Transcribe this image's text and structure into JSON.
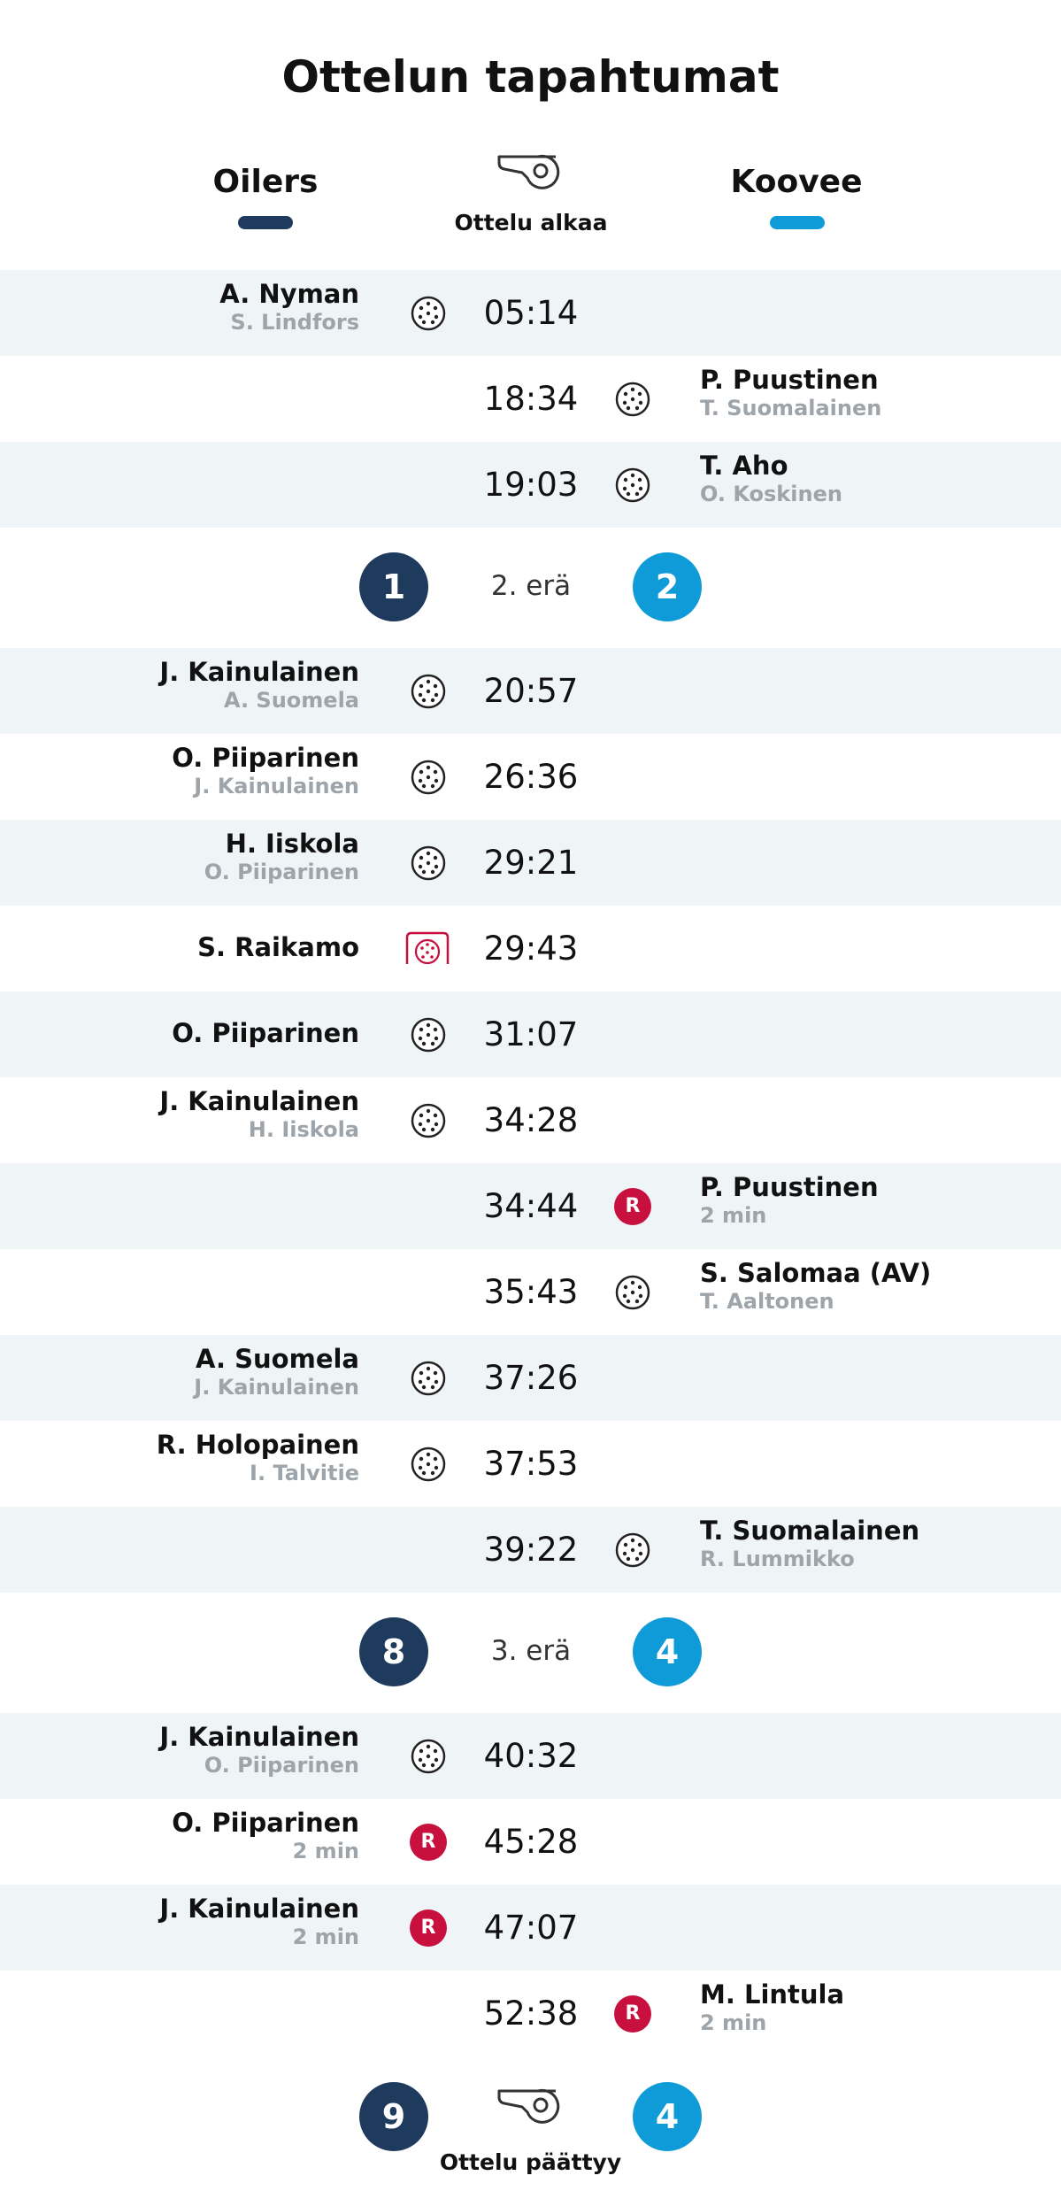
{
  "title": "Ottelun tapahtumat",
  "teams": {
    "home": {
      "name": "Oilers",
      "color": "#1e3a5c"
    },
    "away": {
      "name": "Koovee",
      "color": "#0f9bd7"
    }
  },
  "start_label": "Ottelu alkaa",
  "end_label": "Ottelu päättyy",
  "final_score": {
    "home": "9",
    "away": "4"
  },
  "periods": [
    {
      "label": "2. erä",
      "home_score": "1",
      "away_score": "2"
    },
    {
      "label": "3. erä",
      "home_score": "8",
      "away_score": "4"
    }
  ],
  "events": [
    {
      "time": "05:14",
      "side": "home",
      "type": "goal",
      "player": "A. Nyman",
      "detail": "S. Lindfors"
    },
    {
      "time": "18:34",
      "side": "away",
      "type": "goal",
      "player": "P. Puustinen",
      "detail": "T. Suomalainen"
    },
    {
      "time": "19:03",
      "side": "away",
      "type": "goal",
      "player": "T. Aho",
      "detail": "O. Koskinen"
    },
    {
      "time": "20:57",
      "side": "home",
      "type": "goal",
      "player": "J. Kainulainen",
      "detail": "A. Suomela"
    },
    {
      "time": "26:36",
      "side": "home",
      "type": "goal",
      "player": "O. Piiparinen",
      "detail": "J. Kainulainen"
    },
    {
      "time": "29:21",
      "side": "home",
      "type": "goal",
      "player": "H. Iiskola",
      "detail": "O. Piiparinen"
    },
    {
      "time": "29:43",
      "side": "home",
      "type": "penalty-shot",
      "player": "S. Raikamo",
      "detail": ""
    },
    {
      "time": "31:07",
      "side": "home",
      "type": "goal",
      "player": "O. Piiparinen",
      "detail": ""
    },
    {
      "time": "34:28",
      "side": "home",
      "type": "goal",
      "player": "J. Kainulainen",
      "detail": "H. Iiskola"
    },
    {
      "time": "34:44",
      "side": "away",
      "type": "penalty",
      "player": "P. Puustinen",
      "detail": "2 min",
      "badge": "R"
    },
    {
      "time": "35:43",
      "side": "away",
      "type": "goal",
      "player": "S. Salomaa (AV)",
      "detail": "T. Aaltonen"
    },
    {
      "time": "37:26",
      "side": "home",
      "type": "goal",
      "player": "A. Suomela",
      "detail": "J. Kainulainen"
    },
    {
      "time": "37:53",
      "side": "home",
      "type": "goal",
      "player": "R. Holopainen",
      "detail": "I. Talvitie"
    },
    {
      "time": "39:22",
      "side": "away",
      "type": "goal",
      "player": "T. Suomalainen",
      "detail": "R. Lummikko"
    },
    {
      "time": "40:32",
      "side": "home",
      "type": "goal",
      "player": "J. Kainulainen",
      "detail": "O. Piiparinen"
    },
    {
      "time": "45:28",
      "side": "home",
      "type": "penalty",
      "player": "O. Piiparinen",
      "detail": "2 min",
      "badge": "R"
    },
    {
      "time": "47:07",
      "side": "home",
      "type": "penalty",
      "player": "J. Kainulainen",
      "detail": "2 min",
      "badge": "R"
    },
    {
      "time": "52:38",
      "side": "away",
      "type": "penalty",
      "player": "M. Lintula",
      "detail": "2 min",
      "badge": "R"
    }
  ]
}
